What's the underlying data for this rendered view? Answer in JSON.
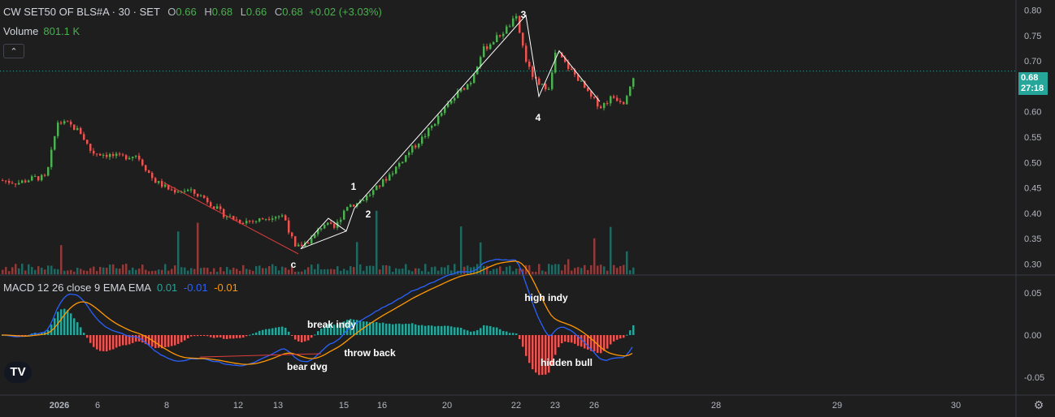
{
  "header": {
    "symbol": "CW SET50 OF BLS#A · 30 · SET",
    "open_label": "O",
    "open": "0.66",
    "high_label": "H",
    "high": "0.68",
    "low_label": "L",
    "low": "0.66",
    "close_label": "C",
    "close": "0.68",
    "change": "+0.02 (+3.03%)"
  },
  "volume_legend": {
    "label": "Volume",
    "value": "801.1 K"
  },
  "macd_legend": {
    "label": "MACD 12 26 close 9 EMA EMA",
    "v1": "0.01",
    "v2": "-0.01",
    "v3": "-0.01"
  },
  "price_badge": {
    "price": "0.68",
    "countdown": "27:18"
  },
  "icons": {
    "collapse": "chevron-up-icon",
    "logo": "tradingview-logo-icon",
    "settings": "gear-icon"
  },
  "colors": {
    "up": "#4caf50",
    "down": "#ef5350",
    "macd_line": "#2962ff",
    "signal_line": "#ff9800",
    "trendline": "#ffffff",
    "bear_line": "#e03e3e"
  },
  "chart_data": {
    "type": "candlestick",
    "price_axis": {
      "ticks": [
        "0.80",
        "0.75",
        "0.70",
        "0.65",
        "0.60",
        "0.55",
        "0.50",
        "0.45",
        "0.40",
        "0.35",
        "0.30"
      ],
      "range": [
        0.28,
        0.82
      ]
    },
    "macd_axis": {
      "ticks": [
        "0.05",
        "0.00",
        "-0.05"
      ],
      "range": [
        -0.07,
        0.07
      ]
    },
    "time_axis": [
      "2026",
      "6",
      "8",
      "12",
      "13",
      "15",
      "16",
      "20",
      "22",
      "23",
      "26",
      "28",
      "29",
      "30"
    ],
    "annotations": {
      "wave_labels": [
        "1",
        "2",
        "3",
        "4",
        "c"
      ],
      "macd_notes": [
        "break indy",
        "throw back",
        "bear dvg",
        "high indy",
        "hidden bull"
      ]
    },
    "price_path": [
      [
        0.0,
        0.465
      ],
      [
        0.03,
        0.46
      ],
      [
        0.06,
        0.47
      ],
      [
        0.08,
        0.47
      ],
      [
        0.1,
        0.58
      ],
      [
        0.12,
        0.575
      ],
      [
        0.14,
        0.56
      ],
      [
        0.16,
        0.52
      ],
      [
        0.19,
        0.515
      ],
      [
        0.21,
        0.51
      ],
      [
        0.24,
        0.515
      ],
      [
        0.27,
        0.465
      ],
      [
        0.3,
        0.445
      ],
      [
        0.33,
        0.445
      ],
      [
        0.36,
        0.43
      ],
      [
        0.39,
        0.4
      ],
      [
        0.42,
        0.385
      ],
      [
        0.45,
        0.385
      ],
      [
        0.48,
        0.395
      ],
      [
        0.5,
        0.395
      ],
      [
        0.52,
        0.33
      ],
      [
        0.55,
        0.35
      ],
      [
        0.57,
        0.38
      ],
      [
        0.59,
        0.37
      ],
      [
        0.61,
        0.415
      ],
      [
        0.63,
        0.42
      ],
      [
        0.66,
        0.445
      ],
      [
        0.69,
        0.48
      ],
      [
        0.72,
        0.52
      ],
      [
        0.75,
        0.555
      ],
      [
        0.78,
        0.6
      ],
      [
        0.81,
        0.64
      ],
      [
        0.83,
        0.66
      ],
      [
        0.85,
        0.72
      ],
      [
        0.87,
        0.74
      ],
      [
        0.89,
        0.76
      ],
      [
        0.91,
        0.785
      ],
      [
        0.93,
        0.69
      ],
      [
        0.95,
        0.65
      ],
      [
        0.97,
        0.65
      ],
      [
        0.98,
        0.72
      ],
      [
        1.0,
        0.69
      ],
      [
        1.02,
        0.665
      ],
      [
        1.04,
        0.63
      ],
      [
        1.06,
        0.61
      ],
      [
        1.08,
        0.63
      ],
      [
        1.1,
        0.62
      ],
      [
        1.12,
        0.68
      ]
    ]
  }
}
